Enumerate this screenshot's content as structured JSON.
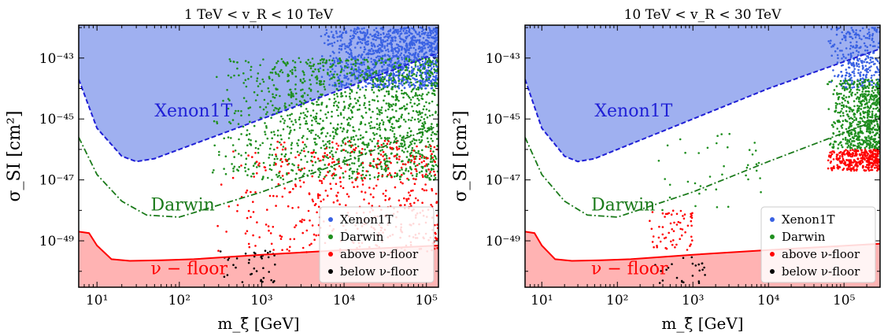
{
  "chart_data": [
    {
      "type": "scatter",
      "title": "1 TeV < v_R < 10 TeV",
      "xlabel": "m_ξ̃ [GeV]",
      "ylabel": "σ_SI [cm²]",
      "xscale": "log",
      "yscale": "log",
      "xlim": [
        6,
        140000
      ],
      "ylim": [
        3e-51,
        1.2e-42
      ],
      "xticks": [
        {
          "value": 10,
          "label": "10¹"
        },
        {
          "value": 100,
          "label": "10²"
        },
        {
          "value": 1000,
          "label": "10³"
        },
        {
          "value": 10000,
          "label": "10⁴"
        },
        {
          "value": 100000,
          "label": "10⁵"
        }
      ],
      "yticks": [
        {
          "value": 1e-49,
          "label": "10⁻⁴⁹"
        },
        {
          "value": 1e-47,
          "label": "10⁻⁴⁷"
        },
        {
          "value": 1e-45,
          "label": "10⁻⁴⁵"
        },
        {
          "value": 1e-43,
          "label": "10⁻⁴³"
        }
      ],
      "curves": [
        {
          "name": "Xenon1T",
          "style": "dashed",
          "color": "#1f1fd6",
          "fill": "#9fb0f0",
          "points": [
            [
              6,
              2e-44
            ],
            [
              10,
              5e-46
            ],
            [
              20,
              6e-47
            ],
            [
              30,
              4e-47
            ],
            [
              50,
              5e-47
            ],
            [
              100,
              1e-46
            ],
            [
              1000,
              1e-45
            ],
            [
              10000,
              1e-44
            ],
            [
              140000,
              1.5e-43
            ]
          ]
        },
        {
          "name": "Darwin",
          "style": "dashdot",
          "color": "#1a7a1a",
          "points": [
            [
              6,
              2.5e-46
            ],
            [
              10,
              1.5e-47
            ],
            [
              20,
              2e-48
            ],
            [
              40,
              7e-49
            ],
            [
              100,
              6e-49
            ],
            [
              1000,
              4e-48
            ],
            [
              10000,
              4e-47
            ],
            [
              140000,
              6e-46
            ]
          ]
        },
        {
          "name": "ν − floor",
          "style": "solid",
          "color": "#ff0000",
          "fill": "#ffb3b3",
          "points": [
            [
              6,
              2e-49
            ],
            [
              8,
              1.8e-49
            ],
            [
              10,
              7e-50
            ],
            [
              15,
              2.5e-50
            ],
            [
              25,
              2.2e-50
            ],
            [
              60,
              2.3e-50
            ],
            [
              150,
              2.5e-50
            ],
            [
              1000,
              3.5e-50
            ],
            [
              10000,
              5e-50
            ],
            [
              140000,
              7e-50
            ]
          ]
        }
      ],
      "region_labels": [
        {
          "text": "Xenon1T",
          "x": 50,
          "y": 1.2e-45,
          "color": "#1f1fd6"
        },
        {
          "text": "Darwin",
          "x": 45,
          "y": 1e-48,
          "color": "#1a7a1a"
        },
        {
          "text": "ν − floor",
          "x": 45,
          "y": 8e-51,
          "color": "#ff0000"
        }
      ],
      "series": [
        {
          "name": "Xenon1T",
          "color": "#3a62e3",
          "region": [
            [
              5000,
              1e-44
            ],
            [
              140000,
              1e-42
            ]
          ],
          "count": 1200
        },
        {
          "name": "Darwin",
          "color": "#1f8f1f",
          "region": [
            [
              250,
              1e-47
            ],
            [
              140000,
              1e-43
            ]
          ],
          "count": 1400
        },
        {
          "name": "above ν-floor",
          "color": "#ff0000",
          "region": [
            [
              250,
              4e-50
            ],
            [
              140000,
              2e-46
            ]
          ],
          "count": 500
        },
        {
          "name": "below ν-floor",
          "color": "#000000",
          "region": [
            [
              250,
              4e-51
            ],
            [
              1500,
              5e-50
            ]
          ],
          "count": 40
        }
      ],
      "legend": {
        "position": "lower-right",
        "entries": [
          "Xenon1T",
          "Darwin",
          "above ν-floor",
          "below ν-floor"
        ]
      }
    },
    {
      "type": "scatter",
      "title": "10 TeV < v_R < 30 TeV",
      "xlabel": "m_ξ̃ [GeV]",
      "ylabel": "σ_SI [cm²]",
      "xscale": "log",
      "yscale": "log",
      "xlim": [
        6,
        300000
      ],
      "ylim": [
        3e-51,
        1.2e-42
      ],
      "xticks": [
        {
          "value": 10,
          "label": "10¹"
        },
        {
          "value": 100,
          "label": "10²"
        },
        {
          "value": 1000,
          "label": "10³"
        },
        {
          "value": 10000,
          "label": "10⁴"
        },
        {
          "value": 100000,
          "label": "10⁵"
        }
      ],
      "yticks": [
        {
          "value": 1e-49,
          "label": "10⁻⁴⁹"
        },
        {
          "value": 1e-47,
          "label": "10⁻⁴⁷"
        },
        {
          "value": 1e-45,
          "label": "10⁻⁴⁵"
        },
        {
          "value": 1e-43,
          "label": "10⁻⁴³"
        }
      ],
      "curves": [
        {
          "name": "Xenon1T",
          "style": "dashed",
          "color": "#1f1fd6",
          "fill": "#9fb0f0",
          "points": [
            [
              6,
              2e-44
            ],
            [
              10,
              5e-46
            ],
            [
              20,
              6e-47
            ],
            [
              30,
              4e-47
            ],
            [
              50,
              5e-47
            ],
            [
              100,
              1e-46
            ],
            [
              1000,
              1e-45
            ],
            [
              10000,
              1e-44
            ],
            [
              300000,
              2e-43
            ]
          ]
        },
        {
          "name": "Darwin",
          "style": "dashdot",
          "color": "#1a7a1a",
          "points": [
            [
              6,
              2.5e-46
            ],
            [
              10,
              1.5e-47
            ],
            [
              20,
              2e-48
            ],
            [
              40,
              7e-49
            ],
            [
              100,
              6e-49
            ],
            [
              1000,
              4e-48
            ],
            [
              10000,
              4e-47
            ],
            [
              300000,
              1e-45
            ]
          ]
        },
        {
          "name": "ν − floor",
          "style": "solid",
          "color": "#ff0000",
          "fill": "#ffb3b3",
          "points": [
            [
              6,
              2e-49
            ],
            [
              8,
              1.8e-49
            ],
            [
              10,
              7e-50
            ],
            [
              15,
              2.5e-50
            ],
            [
              25,
              2.2e-50
            ],
            [
              60,
              2.3e-50
            ],
            [
              150,
              2.5e-50
            ],
            [
              1000,
              3.5e-50
            ],
            [
              10000,
              5e-50
            ],
            [
              300000,
              8e-50
            ]
          ]
        }
      ],
      "region_labels": [
        {
          "text": "Xenon1T",
          "x": 50,
          "y": 1.2e-45,
          "color": "#1f1fd6"
        },
        {
          "text": "Darwin",
          "x": 45,
          "y": 1e-48,
          "color": "#1a7a1a"
        },
        {
          "text": "ν − floor",
          "x": 45,
          "y": 8e-51,
          "color": "#ff0000"
        }
      ],
      "series": [
        {
          "name": "Xenon1T",
          "color": "#3a62e3",
          "region": [
            [
              60000,
              1e-44
            ],
            [
              300000,
              1e-42
            ]
          ],
          "count": 300
        },
        {
          "name": "Darwin",
          "color": "#1f8f1f",
          "region": [
            [
              60000,
              1e-46
            ],
            [
              300000,
              2e-44
            ]
          ],
          "count": 600
        },
        {
          "name": "Darwin",
          "color": "#1f8f1f",
          "region": [
            [
              250,
              1e-48
            ],
            [
              8000,
              4e-46
            ]
          ],
          "count": 40
        },
        {
          "name": "above ν-floor",
          "color": "#ff0000",
          "region": [
            [
              60000,
              2e-47
            ],
            [
              300000,
              1e-46
            ]
          ],
          "count": 350
        },
        {
          "name": "above ν-floor",
          "color": "#ff0000",
          "region": [
            [
              250,
              5e-50
            ],
            [
              1000,
              1e-48
            ]
          ],
          "count": 60
        },
        {
          "name": "below ν-floor",
          "color": "#000000",
          "region": [
            [
              250,
              4e-51
            ],
            [
              1500,
              3e-50
            ]
          ],
          "count": 25
        }
      ],
      "legend": {
        "position": "lower-right",
        "entries": [
          "Xenon1T",
          "Darwin",
          "above ν-floor",
          "below ν-floor"
        ]
      }
    }
  ]
}
